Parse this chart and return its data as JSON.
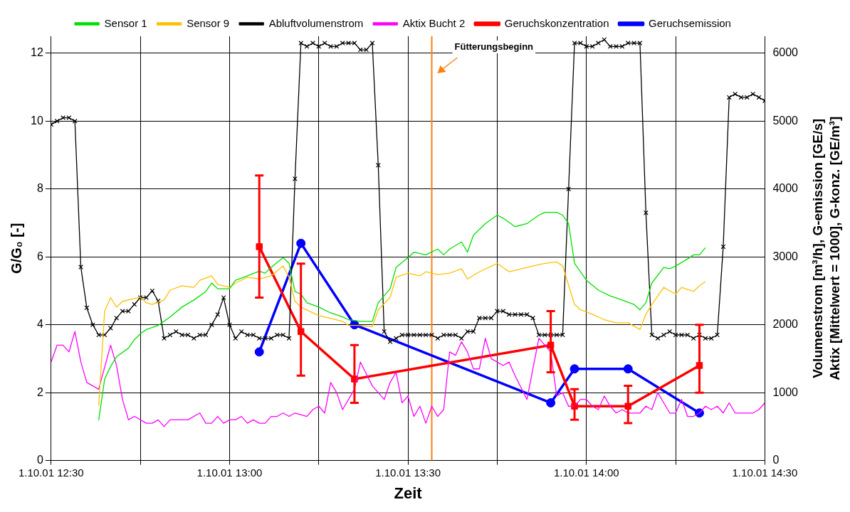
{
  "chart_data": {
    "type": "line",
    "xlabel": "Zeit",
    "ylabel": "G/G₀ [-]",
    "y2label": "Volumenstrom [m³/h], G-emission [GE/s]\nAktix [Mittelwert = 1000], G-konz. [GE/m³]",
    "xlim": [
      "--10-01T12:30",
      "--10-01T14:30"
    ],
    "xticks": [
      {
        "value": "--10-01T12:30",
        "label": "1.10.01 12:30"
      },
      {
        "value": "--10-01T12:45",
        "label": null
      },
      {
        "value": "--10-01T13:00",
        "label": "1.10.01 13:00"
      },
      {
        "value": "--10-01T13:15",
        "label": null
      },
      {
        "value": "--10-01T13:30",
        "label": "1.10.01 13:30"
      },
      {
        "value": "--10-01T13:45",
        "label": null
      },
      {
        "value": "--10-01T14:00",
        "label": "1.10.01 14:00"
      },
      {
        "value": "--10-01T14:15",
        "label": null
      },
      {
        "value": "--10-01T14:30",
        "label": "1.10.01 14:30"
      }
    ],
    "ylim": [
      0,
      12.5
    ],
    "yticks": [
      0,
      2,
      4,
      6,
      8,
      10,
      12
    ],
    "y2lim": [
      0,
      6250
    ],
    "y2ticks": [
      0,
      1000,
      2000,
      3000,
      4000,
      5000,
      6000
    ],
    "grid": true,
    "legend": "top",
    "marker": "none",
    "line_style": "solid",
    "ref_lines": [
      {
        "axis": "x",
        "value": "--10-01T13:34",
        "label": "Fütterungsbeginn",
        "color": "#ff7f0e"
      }
    ],
    "series": [
      {
        "name": "Sensor 1",
        "color": "#00e000",
        "x": [
          "--10-01T12:38",
          "--10-01T12:39",
          "--10-01T12:40",
          "--10-01T12:41",
          "--10-01T12:43",
          "--10-01T12:44",
          "--10-01T12:45",
          "--10-01T12:46",
          "--10-01T12:48",
          "--10-01T12:50",
          "--10-01T12:52",
          "--10-01T12:54",
          "--10-01T12:56",
          "--10-01T12:57",
          "--10-01T12:58",
          "--10-01T13:00",
          "--10-01T13:01",
          "--10-01T13:03",
          "--10-01T13:05",
          "--10-01T13:06",
          "--10-01T13:07",
          "--10-01T13:09",
          "--10-01T13:10",
          "--10-01T13:11",
          "--10-01T13:12",
          "--10-01T13:13",
          "--10-01T13:15",
          "--10-01T13:17",
          "--10-01T13:19",
          "--10-01T13:20",
          "--10-01T13:22",
          "--10-01T13:24",
          "--10-01T13:25",
          "--10-01T13:27",
          "--10-01T13:28",
          "--10-01T13:30",
          "--10-01T13:31",
          "--10-01T13:33",
          "--10-01T13:35",
          "--10-01T13:36",
          "--10-01T13:37",
          "--10-01T13:39",
          "--10-01T13:40",
          "--10-01T13:41",
          "--10-01T13:43",
          "--10-01T13:45",
          "--10-01T13:46",
          "--10-01T13:48",
          "--10-01T13:50",
          "--10-01T13:52",
          "--10-01T13:53",
          "--10-01T13:55",
          "--10-01T13:56",
          "--10-01T13:57",
          "--10-01T13:58",
          "--10-01T13:59",
          "--10-01T14:00",
          "--10-01T14:02",
          "--10-01T14:04",
          "--10-01T14:06",
          "--10-01T14:08",
          "--10-01T14:09",
          "--10-01T14:10",
          "--10-01T14:11",
          "--10-01T14:13",
          "--10-01T14:14",
          "--10-01T14:15",
          "--10-01T14:17",
          "--10-01T14:18",
          "--10-01T14:19",
          "--10-01T14:20"
        ],
        "values": [
          1.19,
          2.4,
          2.77,
          3.06,
          3.31,
          3.56,
          3.73,
          3.86,
          3.98,
          4.23,
          4.52,
          4.73,
          4.98,
          5.23,
          5.06,
          5.06,
          5.31,
          5.44,
          5.58,
          5.52,
          5.69,
          5.98,
          5.81,
          4.98,
          4.9,
          4.65,
          4.52,
          4.35,
          4.23,
          4.15,
          4.1,
          4.1,
          4.65,
          5.06,
          5.69,
          5.98,
          6.14,
          6.06,
          6.23,
          6.06,
          6.23,
          6.44,
          6.14,
          6.64,
          6.98,
          7.23,
          7.14,
          6.89,
          6.98,
          7.23,
          7.31,
          7.31,
          7.23,
          6.98,
          5.81,
          5.56,
          5.31,
          5.02,
          4.85,
          4.73,
          4.6,
          4.44,
          4.65,
          5.23,
          5.69,
          5.65,
          5.73,
          5.94,
          6.06,
          6.06,
          6.27
        ]
      },
      {
        "name": "Sensor 9",
        "color": "#ffc000",
        "x": [
          "--10-01T12:38",
          "--10-01T12:39",
          "--10-01T12:40",
          "--10-01T12:41",
          "--10-01T12:42",
          "--10-01T12:44",
          "--10-01T12:45",
          "--10-01T12:46",
          "--10-01T12:47",
          "--10-01T12:49",
          "--10-01T12:50",
          "--10-01T12:52",
          "--10-01T12:54",
          "--10-01T12:55",
          "--10-01T12:57",
          "--10-01T12:58",
          "--10-01T13:00",
          "--10-01T13:01",
          "--10-01T13:03",
          "--10-01T13:05",
          "--10-01T13:07",
          "--10-01T13:09",
          "--10-01T13:10",
          "--10-01T13:11",
          "--10-01T13:12",
          "--10-01T13:15",
          "--10-01T13:17",
          "--10-01T13:19",
          "--10-01T13:20",
          "--10-01T13:22",
          "--10-01T13:24",
          "--10-01T13:25",
          "--10-01T13:27",
          "--10-01T13:28",
          "--10-01T13:30",
          "--10-01T13:32",
          "--10-01T13:33",
          "--10-01T13:35",
          "--10-01T13:37",
          "--10-01T13:39",
          "--10-01T13:40",
          "--10-01T13:42",
          "--10-01T13:45",
          "--10-01T13:47",
          "--10-01T13:50",
          "--10-01T13:52",
          "--10-01T13:53",
          "--10-01T13:55",
          "--10-01T13:56",
          "--10-01T13:58",
          "--10-01T13:59",
          "--10-01T14:01",
          "--10-01T14:03",
          "--10-01T14:05",
          "--10-01T14:07",
          "--10-01T14:09",
          "--10-01T14:10",
          "--10-01T14:11",
          "--10-01T14:13",
          "--10-01T14:15",
          "--10-01T14:16",
          "--10-01T14:18",
          "--10-01T14:19",
          "--10-01T14:20"
        ],
        "values": [
          1.61,
          4.4,
          4.8,
          4.52,
          4.69,
          4.77,
          4.81,
          4.65,
          4.6,
          4.73,
          5.02,
          5.15,
          5.1,
          5.31,
          5.44,
          5.19,
          5.1,
          5.23,
          5.4,
          5.35,
          5.44,
          5.73,
          5.4,
          4.69,
          4.52,
          4.27,
          4.19,
          4.1,
          3.98,
          3.98,
          3.94,
          4.44,
          4.81,
          5.4,
          5.52,
          5.44,
          5.56,
          5.48,
          5.52,
          5.65,
          5.35,
          5.56,
          5.81,
          5.56,
          5.69,
          5.77,
          5.81,
          5.85,
          5.73,
          4.6,
          4.44,
          4.31,
          4.15,
          4.06,
          4.06,
          3.86,
          4.31,
          4.6,
          5.1,
          4.9,
          5.1,
          4.98,
          5.15,
          5.27
        ]
      },
      {
        "name": "Abluftvolumenstrom",
        "color": "#000000",
        "axis": "y2",
        "marker": "cross",
        "x": [
          "--10-01T12:30",
          "--10-01T12:31",
          "--10-01T12:32",
          "--10-01T12:33",
          "--10-01T12:34",
          "--10-01T12:35",
          "--10-01T12:36",
          "--10-01T12:37",
          "--10-01T12:38",
          "--10-01T12:39",
          "--10-01T12:40",
          "--10-01T12:41",
          "--10-01T12:42",
          "--10-01T12:43",
          "--10-01T12:44",
          "--10-01T12:45",
          "--10-01T12:46",
          "--10-01T12:47",
          "--10-01T12:48",
          "--10-01T12:49",
          "--10-01T12:50",
          "--10-01T12:51",
          "--10-01T12:52",
          "--10-01T12:53",
          "--10-01T12:54",
          "--10-01T12:55",
          "--10-01T12:56",
          "--10-01T12:57",
          "--10-01T12:58",
          "--10-01T12:59",
          "--10-01T13:00",
          "--10-01T13:01",
          "--10-01T13:02",
          "--10-01T13:03",
          "--10-01T13:04",
          "--10-01T13:05",
          "--10-01T13:06",
          "--10-01T13:07",
          "--10-01T13:08",
          "--10-01T13:09",
          "--10-01T13:10",
          "--10-01T13:11",
          "--10-01T13:12",
          "--10-01T13:13",
          "--10-01T13:14",
          "--10-01T13:15",
          "--10-01T13:16",
          "--10-01T13:17",
          "--10-01T13:18",
          "--10-01T13:19",
          "--10-01T13:20",
          "--10-01T13:21",
          "--10-01T13:22",
          "--10-01T13:23",
          "--10-01T13:24",
          "--10-01T13:25",
          "--10-01T13:26",
          "--10-01T13:27",
          "--10-01T13:28",
          "--10-01T13:29",
          "--10-01T13:30",
          "--10-01T13:31",
          "--10-01T13:32",
          "--10-01T13:33",
          "--10-01T13:34",
          "--10-01T13:35",
          "--10-01T13:36",
          "--10-01T13:37",
          "--10-01T13:38",
          "--10-01T13:39",
          "--10-01T13:40",
          "--10-01T13:41",
          "--10-01T13:42",
          "--10-01T13:43",
          "--10-01T13:44",
          "--10-01T13:45",
          "--10-01T13:46",
          "--10-01T13:47",
          "--10-01T13:48",
          "--10-01T13:49",
          "--10-01T13:50",
          "--10-01T13:51",
          "--10-01T13:52",
          "--10-01T13:53",
          "--10-01T13:54",
          "--10-01T13:55",
          "--10-01T13:56",
          "--10-01T13:57",
          "--10-01T13:58",
          "--10-01T13:59",
          "--10-01T14:00",
          "--10-01T14:01",
          "--10-01T14:02",
          "--10-01T14:03",
          "--10-01T14:04",
          "--10-01T14:05",
          "--10-01T14:06",
          "--10-01T14:07",
          "--10-01T14:08",
          "--10-01T14:09",
          "--10-01T14:10",
          "--10-01T14:11",
          "--10-01T14:12",
          "--10-01T14:13",
          "--10-01T14:14",
          "--10-01T14:15",
          "--10-01T14:16",
          "--10-01T14:17",
          "--10-01T14:18",
          "--10-01T14:19",
          "--10-01T14:20",
          "--10-01T14:21",
          "--10-01T14:22",
          "--10-01T14:23",
          "--10-01T14:24",
          "--10-01T14:25",
          "--10-01T14:26",
          "--10-01T14:27",
          "--10-01T14:28",
          "--10-01T14:29",
          "--10-01T14:30"
        ],
        "values": [
          4950,
          5000,
          5050,
          5050,
          5000,
          2850,
          2250,
          2000,
          1850,
          1850,
          1950,
          2100,
          2200,
          2200,
          2300,
          2400,
          2400,
          2500,
          2350,
          1800,
          1850,
          1900,
          1850,
          1850,
          1800,
          1850,
          1850,
          2000,
          2150,
          2400,
          2000,
          1800,
          1900,
          1850,
          1850,
          1800,
          1800,
          1800,
          1850,
          1850,
          1800,
          4150,
          6150,
          6100,
          6150,
          6100,
          6150,
          6100,
          6100,
          6150,
          6150,
          6150,
          6050,
          6050,
          6150,
          4350,
          1900,
          1750,
          1800,
          1850,
          1850,
          1850,
          1850,
          1850,
          1850,
          1800,
          1850,
          1850,
          1850,
          1800,
          1900,
          1900,
          2100,
          2100,
          2100,
          2200,
          2200,
          2150,
          2150,
          2150,
          2150,
          2100,
          1850,
          1850,
          1850,
          1850,
          1850,
          4000,
          6150,
          6150,
          6100,
          6100,
          6150,
          6200,
          6100,
          6100,
          6100,
          6150,
          6150,
          6150,
          3650,
          1850,
          1800,
          1850,
          1900,
          1850,
          1850,
          1850,
          1800,
          1850,
          1800,
          1800,
          1850,
          3150,
          5350,
          5400,
          5350,
          5350,
          5400,
          5350,
          5300
        ]
      },
      {
        "name": "Aktix Bucht 2",
        "color": "#ff00ff",
        "axis": "y2",
        "x": [
          "--10-01T12:30",
          "--10-01T12:31",
          "--10-01T12:32",
          "--10-01T12:33",
          "--10-01T12:34",
          "--10-01T12:35",
          "--10-01T12:36",
          "--10-01T12:38",
          "--10-01T12:40",
          "--10-01T12:41",
          "--10-01T12:42",
          "--10-01T12:43",
          "--10-01T12:44",
          "--10-01T12:46",
          "--10-01T12:47",
          "--10-01T12:48",
          "--10-01T12:49",
          "--10-01T12:50",
          "--10-01T12:51",
          "--10-01T12:52",
          "--10-01T12:53",
          "--10-01T12:55",
          "--10-01T12:56",
          "--10-01T12:57",
          "--10-01T12:58",
          "--10-01T12:59",
          "--10-01T13:00",
          "--10-01T13:01",
          "--10-01T13:02",
          "--10-01T13:03",
          "--10-01T13:04",
          "--10-01T13:05",
          "--10-01T13:06",
          "--10-01T13:07",
          "--10-01T13:08",
          "--10-01T13:09",
          "--10-01T13:10",
          "--10-01T13:11",
          "--10-01T13:13",
          "--10-01T13:14",
          "--10-01T13:15",
          "--10-01T13:16",
          "--10-01T13:17",
          "--10-01T13:18",
          "--10-01T13:19",
          "--10-01T13:21",
          "--10-01T13:22",
          "--10-01T13:24",
          "--10-01T13:26",
          "--10-01T13:27",
          "--10-01T13:28",
          "--10-01T13:29",
          "--10-01T13:30",
          "--10-01T13:31",
          "--10-01T13:32",
          "--10-01T13:33",
          "--10-01T13:34",
          "--10-01T13:35",
          "--10-01T13:36",
          "--10-01T13:37",
          "--10-01T13:38",
          "--10-01T13:39",
          "--10-01T13:40",
          "--10-01T13:41",
          "--10-01T13:42",
          "--10-01T13:43",
          "--10-01T13:44",
          "--10-01T13:45",
          "--10-01T13:46",
          "--10-01T13:47",
          "--10-01T13:48",
          "--10-01T13:50",
          "--10-01T13:52",
          "--10-01T13:54",
          "--10-01T13:55",
          "--10-01T13:56",
          "--10-01T13:57",
          "--10-01T13:58",
          "--10-01T13:59",
          "--10-01T14:00",
          "--10-01T14:01",
          "--10-01T14:02",
          "--10-01T14:03",
          "--10-01T14:04",
          "--10-01T14:05",
          "--10-01T14:06",
          "--10-01T14:07",
          "--10-01T14:08",
          "--10-01T14:09",
          "--10-01T14:10",
          "--10-01T14:11",
          "--10-01T14:12",
          "--10-01T14:13",
          "--10-01T14:14",
          "--10-01T14:15",
          "--10-01T14:16",
          "--10-01T14:17",
          "--10-01T14:18",
          "--10-01T14:19",
          "--10-01T14:20",
          "--10-01T14:21",
          "--10-01T14:22",
          "--10-01T14:23",
          "--10-01T14:24",
          "--10-01T14:25",
          "--10-01T14:26",
          "--10-01T14:28",
          "--10-01T14:29",
          "--10-01T14:30"
        ],
        "values": [
          1450,
          1700,
          1700,
          1600,
          1900,
          1450,
          1150,
          1050,
          1700,
          1400,
          900,
          600,
          650,
          550,
          550,
          600,
          500,
          600,
          600,
          600,
          600,
          700,
          550,
          550,
          650,
          550,
          600,
          600,
          650,
          550,
          600,
          550,
          550,
          650,
          650,
          700,
          650,
          700,
          650,
          750,
          800,
          700,
          1150,
          1000,
          750,
          1050,
          1450,
          1100,
          900,
          1150,
          1300,
          850,
          950,
          650,
          800,
          550,
          800,
          650,
          750,
          1600,
          1550,
          1750,
          1600,
          1350,
          1350,
          1800,
          1500,
          1450,
          1400,
          1450,
          1250,
          900,
          1800,
          1600,
          950,
          1000,
          800,
          800,
          900,
          900,
          800,
          750,
          950,
          800,
          700,
          750,
          700,
          700,
          700,
          800,
          750,
          1000,
          850,
          700,
          700,
          900,
          650,
          650,
          700,
          800,
          750,
          800,
          700,
          850,
          700,
          700,
          700,
          750,
          850
        ]
      },
      {
        "name": "Geruchskonzentration",
        "color": "#ff0000",
        "axis": "y2",
        "marker": "square",
        "x": [
          "--10-01T13:05",
          "--10-01T13:12",
          "--10-01T13:21",
          "--10-01T13:54",
          "--10-01T13:58",
          "--10-01T14:07",
          "--10-01T14:19"
        ],
        "values": [
          3150,
          1900,
          1200,
          1700,
          800,
          800,
          1400
        ],
        "errors": [
          [
            2400,
            4200
          ],
          [
            1250,
            2900
          ],
          [
            850,
            1700
          ],
          [
            1300,
            2200
          ],
          [
            600,
            1050
          ],
          [
            550,
            1100
          ],
          [
            1000,
            2000
          ]
        ]
      },
      {
        "name": "Geruchsemission",
        "color": "#0000ff",
        "axis": "y2",
        "marker": "circle",
        "x": [
          "--10-01T13:05",
          "--10-01T13:12",
          "--10-01T13:21",
          "--10-01T13:54",
          "--10-01T13:58",
          "--10-01T14:07",
          "--10-01T14:19"
        ],
        "values": [
          1600,
          3200,
          2000,
          850,
          1350,
          1350,
          700
        ]
      }
    ]
  }
}
